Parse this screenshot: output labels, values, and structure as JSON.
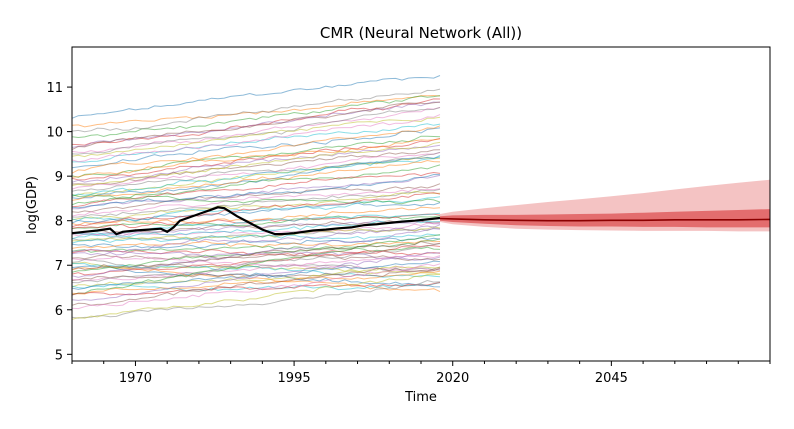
{
  "chart_data": {
    "type": "line",
    "title": "CMR (Neural Network (All))",
    "xlabel": "Time",
    "ylabel": "log(GDP)",
    "xlim": [
      1960,
      2070
    ],
    "ylim": [
      4.85,
      11.9
    ],
    "xticks": [
      1970,
      1995,
      2020,
      2045
    ],
    "yticks": [
      5,
      6,
      7,
      8,
      9,
      10,
      11
    ],
    "grid": false,
    "legend": "none",
    "history_years": [
      1960,
      2018
    ],
    "background_series": {
      "description_count": 80,
      "palette": [
        "#1f77b4",
        "#ff7f0e",
        "#2ca02c",
        "#d62728",
        "#9467bd",
        "#8c564b",
        "#e377c2",
        "#7f7f7f",
        "#bcbd22",
        "#17becf"
      ],
      "start_levels": [
        10.3,
        10.1,
        9.85,
        9.7,
        9.65,
        9.6,
        9.55,
        9.5,
        9.45,
        9.3,
        9.2,
        9.1,
        9.0,
        8.95,
        8.9,
        8.85,
        8.75,
        8.7,
        8.6,
        8.55,
        8.5,
        8.45,
        8.4,
        8.35,
        8.3,
        8.2,
        8.15,
        8.1,
        8.05,
        8.0,
        7.95,
        7.9,
        7.85,
        7.8,
        7.75,
        7.7,
        7.65,
        7.6,
        7.55,
        7.5,
        7.45,
        7.4,
        7.35,
        7.3,
        7.25,
        7.2,
        7.15,
        7.1,
        7.05,
        7.0,
        6.95,
        6.9,
        6.85,
        6.8,
        6.75,
        6.7,
        6.65,
        6.6,
        6.55,
        6.5,
        6.45,
        6.4,
        6.35,
        6.3,
        6.2,
        6.1,
        6.0,
        5.85,
        5.8,
        7.6,
        8.25,
        9.0,
        8.6,
        7.9,
        7.3,
        6.9,
        9.35,
        10.0,
        8.8,
        7.7
      ],
      "end_levels": [
        11.3,
        10.8,
        10.75,
        10.7,
        10.65,
        10.6,
        10.55,
        10.5,
        10.4,
        10.2,
        10.1,
        10.0,
        9.9,
        9.8,
        9.7,
        9.6,
        9.55,
        9.5,
        9.45,
        9.4,
        9.35,
        9.3,
        9.2,
        9.1,
        9.0,
        8.9,
        8.8,
        8.7,
        8.6,
        8.5,
        8.4,
        8.3,
        8.2,
        8.1,
        8.0,
        7.95,
        7.9,
        7.85,
        7.8,
        7.7,
        7.6,
        7.5,
        7.4,
        7.3,
        7.2,
        7.1,
        7.0,
        6.9,
        6.8,
        6.7,
        6.6,
        6.5,
        7.6,
        7.4,
        7.8,
        7.0,
        7.2,
        7.5,
        6.9,
        6.5,
        7.1,
        6.8,
        7.7,
        6.6,
        7.3,
        6.9,
        7.0,
        6.6,
        6.8,
        8.0,
        9.0,
        9.9,
        8.4,
        8.6,
        7.9,
        7.5,
        10.3,
        11.0,
        9.7,
        8.2
      ]
    },
    "highlighted_series": {
      "color": "#000000",
      "x": [
        1960,
        1962,
        1964,
        1966,
        1967,
        1968,
        1970,
        1972,
        1974,
        1975,
        1976,
        1977,
        1978,
        1980,
        1982,
        1983,
        1984,
        1986,
        1988,
        1990,
        1992,
        1993,
        1995,
        1998,
        2000,
        2002,
        2004,
        2006,
        2008,
        2010,
        2012,
        2014,
        2016,
        2018
      ],
      "y": [
        7.72,
        7.75,
        7.78,
        7.82,
        7.7,
        7.75,
        7.78,
        7.8,
        7.82,
        7.75,
        7.85,
        8.0,
        8.05,
        8.15,
        8.25,
        8.3,
        8.28,
        8.1,
        7.95,
        7.8,
        7.7,
        7.7,
        7.72,
        7.78,
        7.8,
        7.83,
        7.85,
        7.9,
        7.92,
        7.95,
        7.98,
        8.0,
        8.03,
        8.06
      ]
    },
    "forecast": {
      "color": "#d62728",
      "x": [
        2018,
        2020,
        2025,
        2030,
        2035,
        2040,
        2045,
        2050,
        2055,
        2060,
        2065,
        2070
      ],
      "median": [
        8.05,
        8.04,
        8.02,
        8.01,
        8.0,
        8.0,
        8.01,
        8.01,
        8.02,
        8.02,
        8.02,
        8.03
      ],
      "inner_band_low": [
        8.0,
        7.97,
        7.93,
        7.9,
        7.88,
        7.87,
        7.87,
        7.86,
        7.86,
        7.85,
        7.85,
        7.85
      ],
      "inner_band_high": [
        8.1,
        8.12,
        8.13,
        8.13,
        8.14,
        8.15,
        8.16,
        8.18,
        8.2,
        8.22,
        8.24,
        8.26
      ],
      "outer_band_low": [
        7.97,
        7.92,
        7.86,
        7.82,
        7.8,
        7.79,
        7.78,
        7.77,
        7.77,
        7.77,
        7.76,
        7.76
      ],
      "outer_band_high": [
        8.15,
        8.2,
        8.28,
        8.35,
        8.42,
        8.48,
        8.55,
        8.62,
        8.7,
        8.78,
        8.85,
        8.92
      ]
    }
  }
}
